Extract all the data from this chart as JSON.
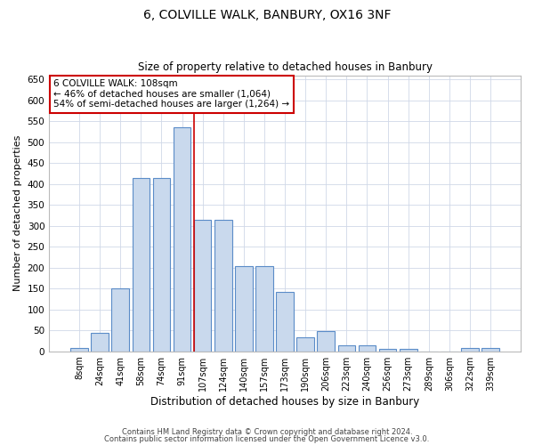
{
  "title": "6, COLVILLE WALK, BANBURY, OX16 3NF",
  "subtitle": "Size of property relative to detached houses in Banbury",
  "xlabel": "Distribution of detached houses by size in Banbury",
  "ylabel": "Number of detached properties",
  "categories": [
    "8sqm",
    "24sqm",
    "41sqm",
    "58sqm",
    "74sqm",
    "91sqm",
    "107sqm",
    "124sqm",
    "140sqm",
    "157sqm",
    "173sqm",
    "190sqm",
    "206sqm",
    "223sqm",
    "240sqm",
    "256sqm",
    "273sqm",
    "289sqm",
    "306sqm",
    "322sqm",
    "339sqm"
  ],
  "values": [
    8,
    44,
    150,
    415,
    415,
    535,
    315,
    315,
    203,
    203,
    142,
    34,
    48,
    14,
    14,
    5,
    5,
    0,
    0,
    7,
    7
  ],
  "bar_color": "#c9d9ed",
  "bar_edge_color": "#5b8cc8",
  "vline_color": "#cc0000",
  "annotation_text": "6 COLVILLE WALK: 108sqm\n← 46% of detached houses are smaller (1,064)\n54% of semi-detached houses are larger (1,264) →",
  "annotation_box_color": "#cc0000",
  "ylim": [
    0,
    660
  ],
  "yticks": [
    0,
    50,
    100,
    150,
    200,
    250,
    300,
    350,
    400,
    450,
    500,
    550,
    600,
    650
  ],
  "footer1": "Contains HM Land Registry data © Crown copyright and database right 2024.",
  "footer2": "Contains public sector information licensed under the Open Government Licence v3.0.",
  "bg_color": "#ffffff",
  "grid_color": "#d0d8e8"
}
